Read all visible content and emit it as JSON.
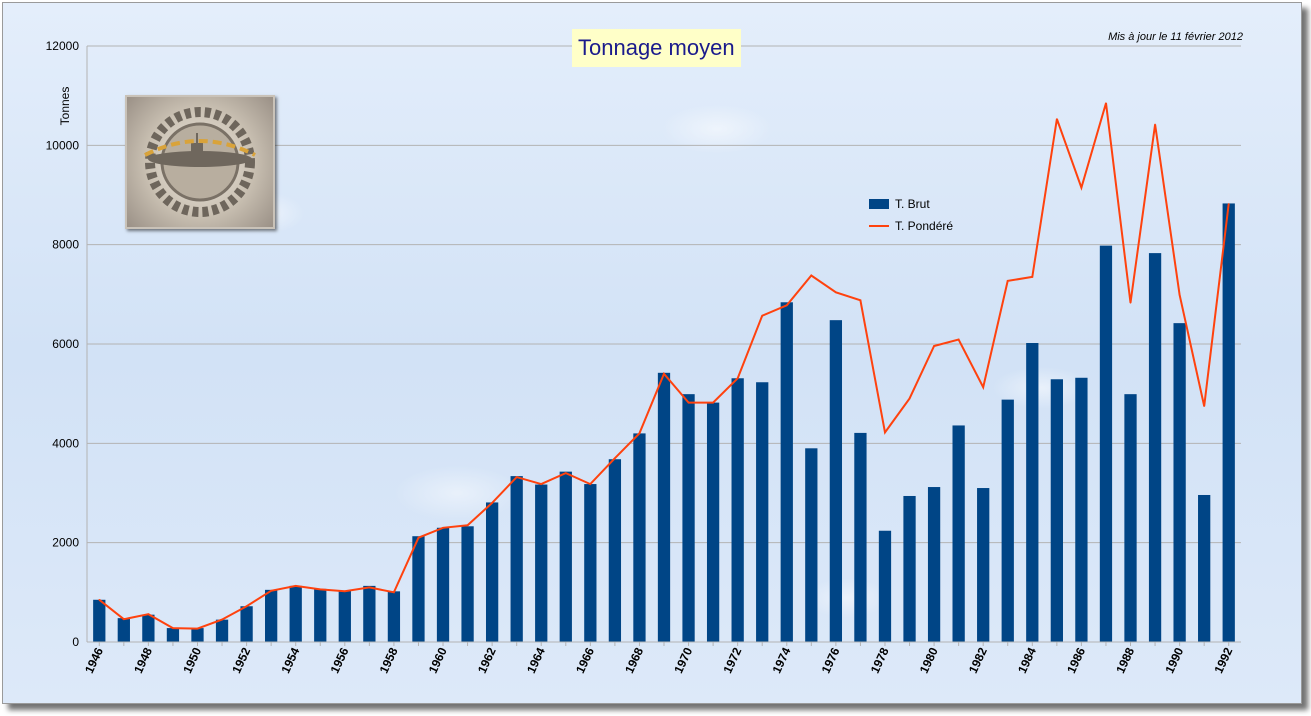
{
  "chart_data": {
    "type": "bar",
    "title": "Tonnage moyen",
    "subtitle": "Mis à jour le 11 février 2012",
    "xlabel": "",
    "ylabel": "Tonnes",
    "ylim": [
      0,
      12000
    ],
    "yticks": [
      0,
      2000,
      4000,
      6000,
      8000,
      10000,
      12000
    ],
    "grid": true,
    "legend_position": "right",
    "categories": [
      "1946",
      "1947",
      "1948",
      "1949",
      "1950",
      "1951",
      "1952",
      "1953",
      "1954",
      "1955",
      "1956",
      "1957",
      "1958",
      "1959",
      "1960",
      "1961",
      "1962",
      "1963",
      "1964",
      "1965",
      "1966",
      "1967",
      "1968",
      "1969",
      "1970",
      "1971",
      "1972",
      "1973",
      "1974",
      "1975",
      "1976",
      "1977",
      "1978",
      "1979",
      "1980",
      "1981",
      "1982",
      "1983",
      "1984",
      "1985",
      "1986",
      "1987",
      "1988",
      "1989",
      "1990",
      "1991",
      "1992"
    ],
    "xtick_labels": [
      "1946",
      "1948",
      "1950",
      "1952",
      "1954",
      "1956",
      "1958",
      "1960",
      "1962",
      "1964",
      "1966",
      "1968",
      "1970",
      "1972",
      "1974",
      "1976",
      "1978",
      "1980",
      "1982",
      "1984",
      "1986",
      "1988",
      "1990",
      "1992"
    ],
    "series": [
      {
        "name": "T. Brut",
        "kind": "bar",
        "color": "#004586",
        "values": [
          850,
          480,
          550,
          280,
          280,
          450,
          720,
          1050,
          1130,
          1070,
          1030,
          1130,
          1020,
          2130,
          2300,
          2330,
          2810,
          3340,
          3170,
          3430,
          3180,
          3680,
          4200,
          5420,
          4990,
          4820,
          5310,
          5230,
          6840,
          3900,
          6480,
          4210,
          2240,
          2940,
          3120,
          4360,
          3100,
          4880,
          6020,
          5290,
          5320,
          7980,
          4990,
          7830,
          6420,
          2960,
          8830
        ]
      },
      {
        "name": "T. Pondéré",
        "kind": "line",
        "color": "#ff420e",
        "values": [
          850,
          460,
          560,
          280,
          270,
          450,
          720,
          1030,
          1130,
          1060,
          1020,
          1100,
          1000,
          2100,
          2300,
          2350,
          2800,
          3320,
          3180,
          3400,
          3180,
          3700,
          4200,
          5400,
          4820,
          4820,
          5310,
          6570,
          6780,
          7380,
          7040,
          6880,
          4220,
          4900,
          5960,
          6090,
          5130,
          7270,
          7350,
          10530,
          9150,
          10850,
          6830,
          10420,
          6990,
          4750,
          8820
        ]
      }
    ]
  }
}
